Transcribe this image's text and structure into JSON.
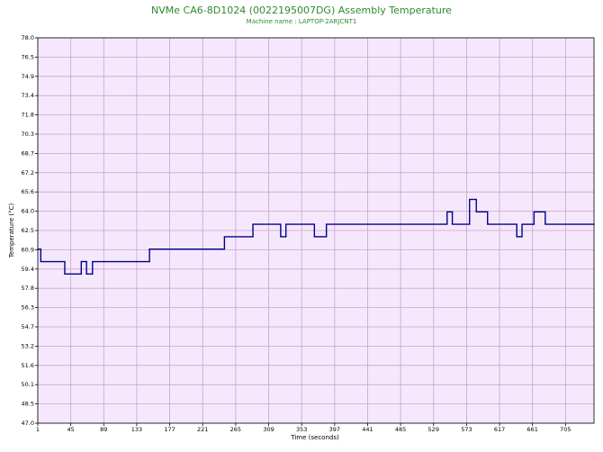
{
  "chart_data": {
    "type": "step-line",
    "title": "NVMe CA6-8D1024 (0022195007DG) Assembly Temperature",
    "subtitle": "Machine name : LAPTOP-2ARJCNT1",
    "x_label": "Time (seconds)",
    "y_label": "Temperature (°C)",
    "x": [
      1,
      5,
      37,
      59,
      66,
      74,
      150,
      250,
      288,
      325,
      332,
      370,
      386,
      547,
      554,
      577,
      586,
      601,
      640,
      647,
      663,
      678
    ],
    "values": [
      61,
      60,
      59,
      60,
      59,
      60,
      61,
      62,
      63,
      62,
      63,
      62,
      63,
      64,
      63,
      65,
      64,
      63,
      62,
      63,
      64,
      63
    ],
    "color": "#00008b",
    "xlim": [
      1,
      743
    ],
    "ylim": [
      47,
      78
    ],
    "xticks": [
      1,
      45,
      89,
      133,
      177,
      221,
      265,
      309,
      353,
      397,
      441,
      485,
      529,
      573,
      617,
      661,
      705
    ],
    "yticks": [
      {
        "value": 78,
        "label": "78.0"
      },
      {
        "value": 76.45,
        "label": "76.5"
      },
      74.9,
      {
        "value": 73.35,
        "label": "73.4"
      },
      71.8,
      {
        "value": 70.25,
        "label": "70.3"
      },
      68.7,
      {
        "value": 67.15,
        "label": "67.2"
      },
      65.6,
      {
        "value": 64.05,
        "label": "64.0"
      },
      62.5,
      {
        "value": 60.95,
        "label": "60.9"
      },
      59.4,
      {
        "value": 57.85,
        "label": "57.8"
      },
      56.3,
      {
        "value": 54.75,
        "label": "54.7"
      },
      53.2,
      {
        "value": 51.65,
        "label": "51.6"
      },
      50.1,
      {
        "value": 48.55,
        "label": "48.5"
      },
      {
        "value": 47,
        "label": "47.0"
      }
    ],
    "grid": true,
    "plot_background": "#f6e8fc",
    "grid_color": "#c9a3cf"
  }
}
